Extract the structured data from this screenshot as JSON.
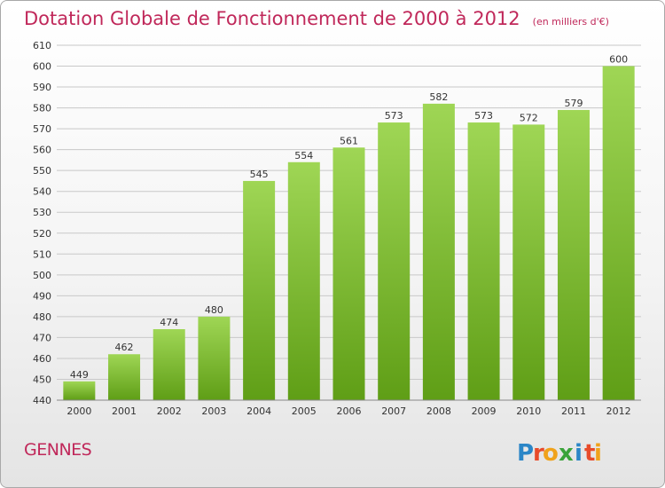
{
  "chart_data": {
    "type": "bar",
    "title": "Dotation Globale de Fonctionnement de 2000 à 2012",
    "subtitle": "(en milliers d'€)",
    "categories": [
      "2000",
      "2001",
      "2002",
      "2003",
      "2004",
      "2005",
      "2006",
      "2007",
      "2008",
      "2009",
      "2010",
      "2011",
      "2012"
    ],
    "values": [
      449,
      462,
      474,
      480,
      545,
      554,
      561,
      573,
      582,
      573,
      572,
      579,
      600
    ],
    "value_labels": [
      "449",
      "462",
      "474",
      "480",
      "545",
      "554",
      "561",
      "573",
      "582",
      "573",
      "572",
      "579",
      "600"
    ],
    "ylim": [
      440,
      610
    ],
    "yticks": [
      440,
      450,
      460,
      470,
      480,
      490,
      500,
      510,
      520,
      530,
      540,
      550,
      560,
      570,
      580,
      590,
      600,
      610
    ],
    "grid": true,
    "bar_color_top": "#9fd655",
    "bar_color_bottom": "#5f9e16",
    "xlabel": "",
    "ylabel": ""
  },
  "commune": "GENNES",
  "logo": {
    "text": "Proxiti",
    "letters": [
      "P",
      "r",
      "o",
      "x",
      "i",
      "t",
      "i"
    ]
  },
  "colors": {
    "title": "#c0285a",
    "grid": "#c8c8c8",
    "axis_text": "#333333"
  }
}
